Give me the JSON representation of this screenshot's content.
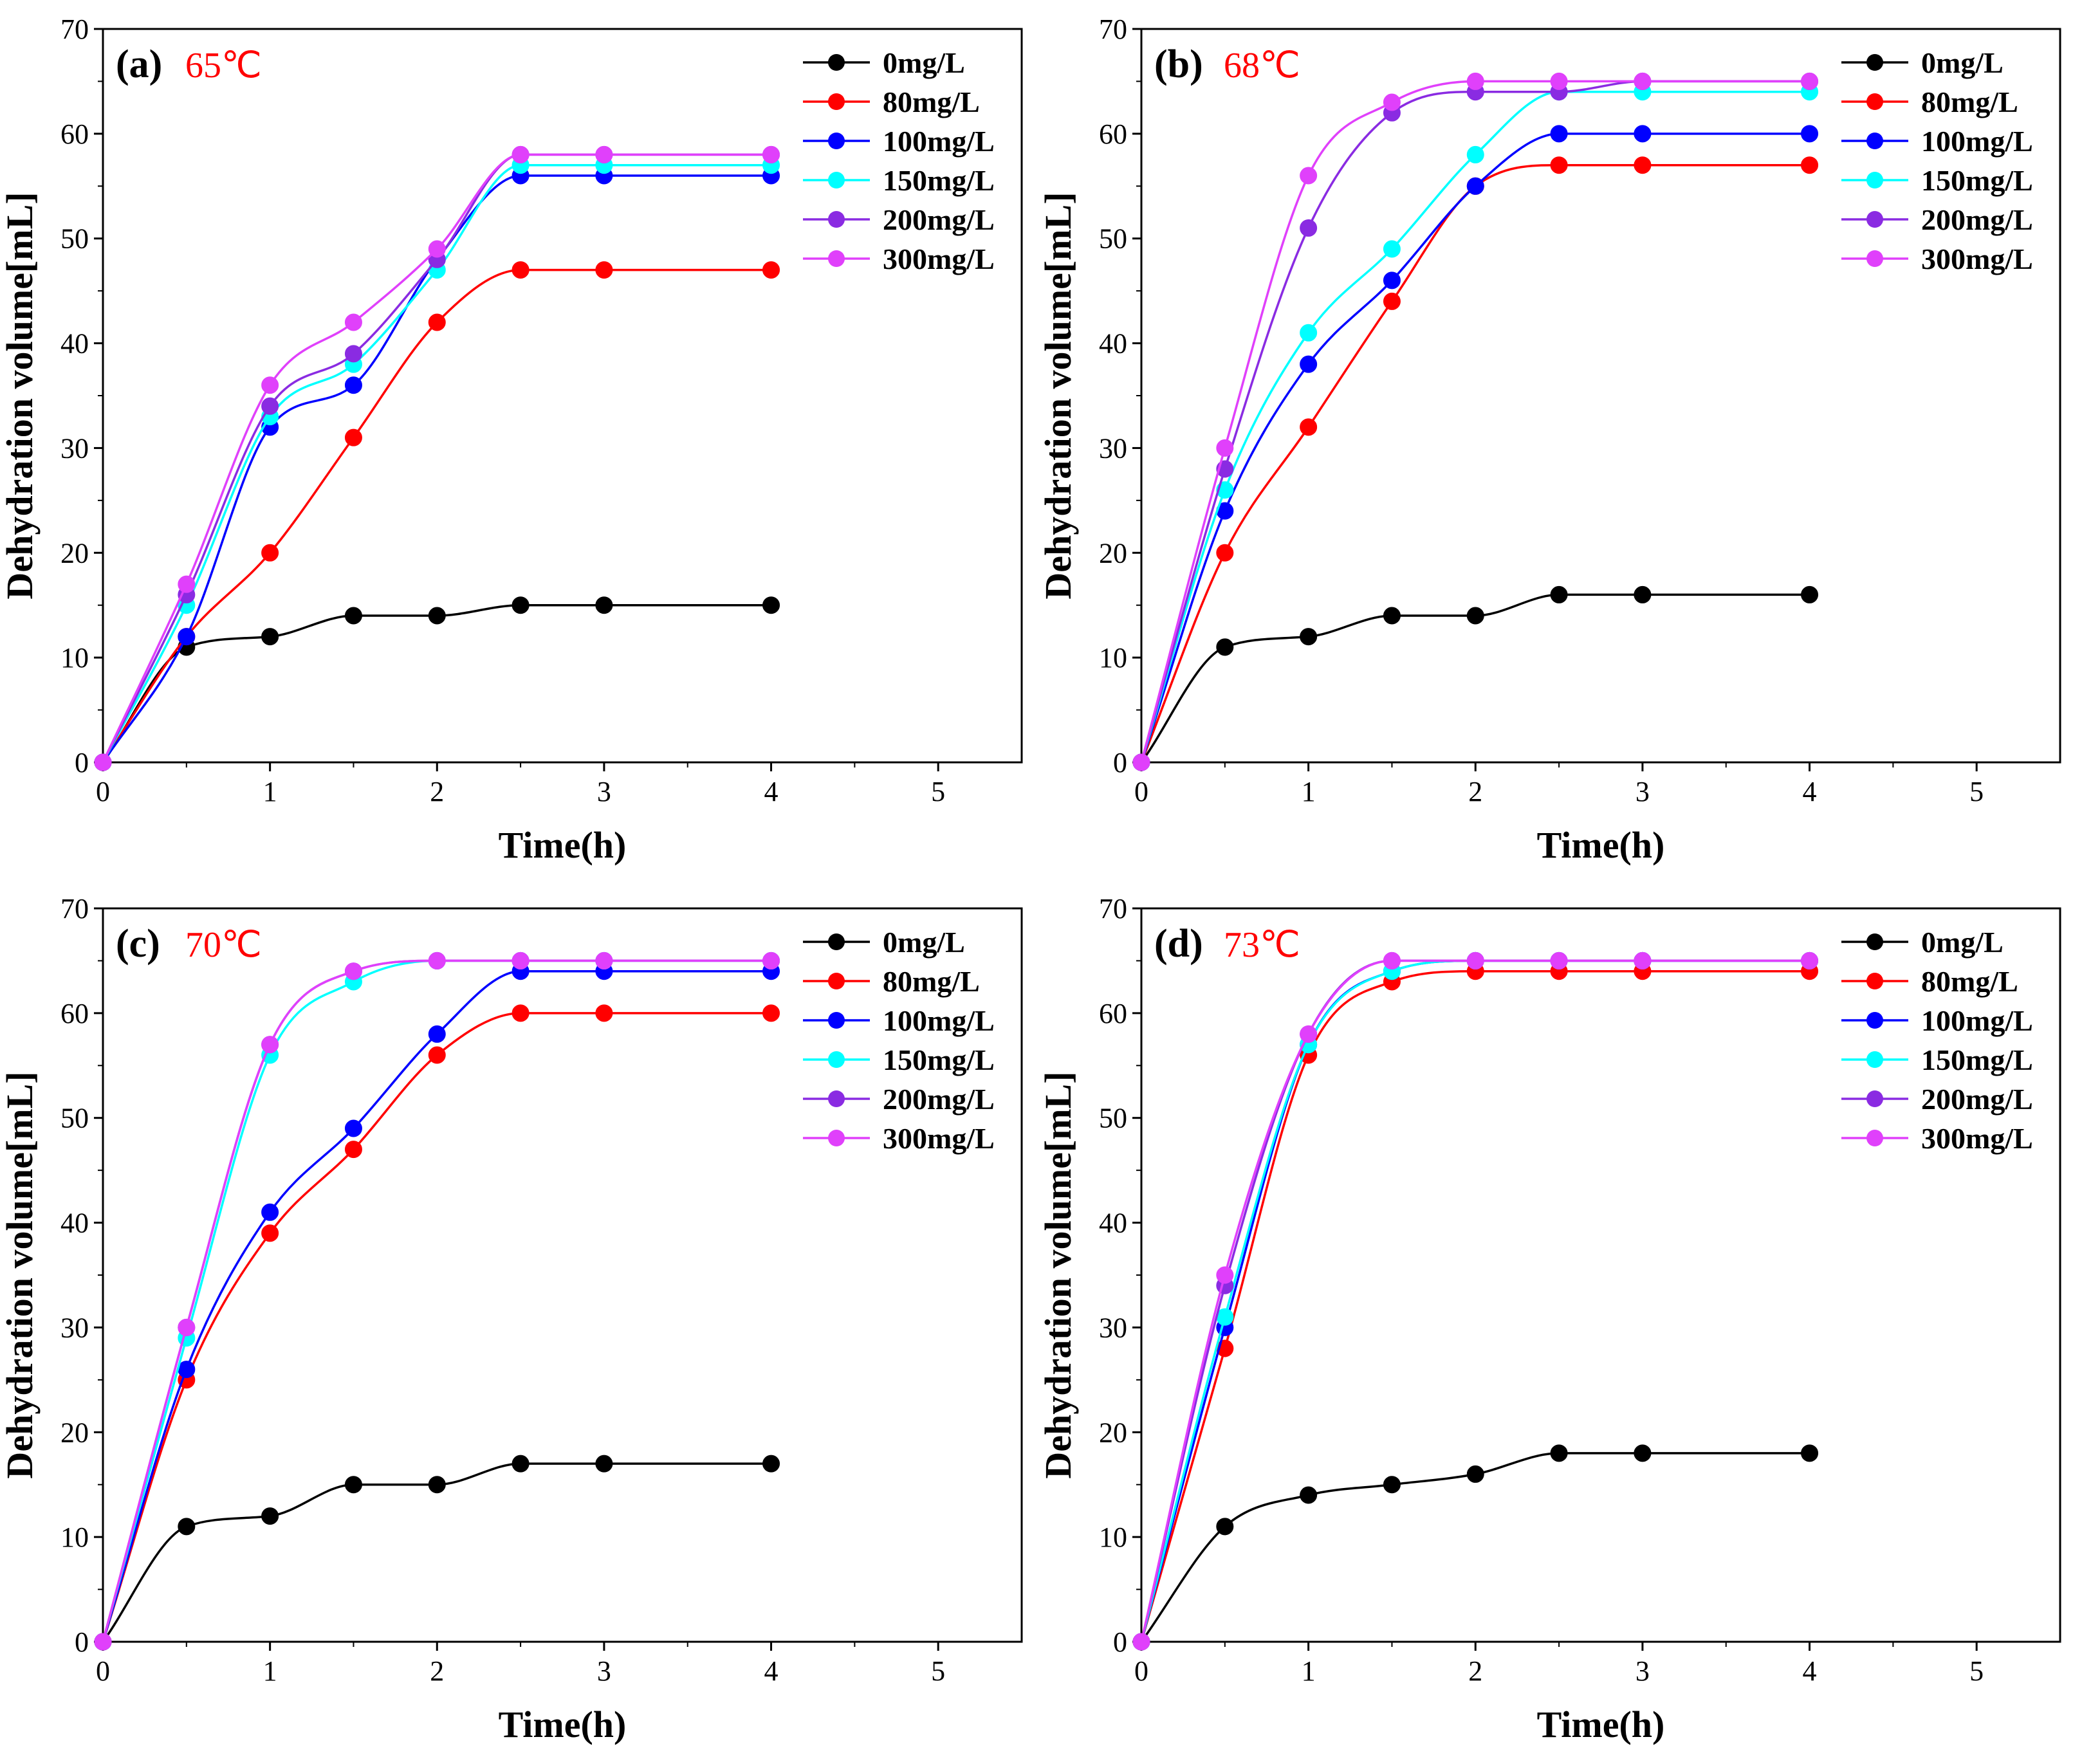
{
  "colors": {
    "0mg/L": "#000000",
    "80mg/L": "#ff0000",
    "100mg/L": "#0000ff",
    "150mg/L": "#00ffff",
    "200mg/L": "#8a2be2",
    "300mg/L": "#e040fb",
    "temperature_label": "#ff0000"
  },
  "chart_data": [
    {
      "type": "line",
      "panel_label": "(a)",
      "temperature": "65℃",
      "xlabel": "Time(h)",
      "ylabel": "Dehydration volume[mL]",
      "xlim": [
        0,
        5.5
      ],
      "ylim": [
        0,
        70
      ],
      "xticks": [
        0,
        1,
        2,
        3,
        4,
        5
      ],
      "yticks": [
        0,
        10,
        20,
        30,
        40,
        50,
        60,
        70
      ],
      "legend_position": "top-right",
      "x": [
        0,
        0.5,
        1,
        1.5,
        2,
        2.5,
        3,
        4
      ],
      "series": [
        {
          "name": "0mg/L",
          "values": [
            0,
            11,
            12,
            14,
            14,
            15,
            15,
            15
          ]
        },
        {
          "name": "80mg/L",
          "values": [
            0,
            12,
            20,
            31,
            42,
            47,
            47,
            47
          ]
        },
        {
          "name": "100mg/L",
          "values": [
            0,
            12,
            32,
            36,
            48,
            56,
            56,
            56
          ]
        },
        {
          "name": "150mg/L",
          "values": [
            0,
            15,
            33,
            38,
            47,
            57,
            57,
            57
          ]
        },
        {
          "name": "200mg/L",
          "values": [
            0,
            16,
            34,
            39,
            48,
            58,
            58,
            58
          ]
        },
        {
          "name": "300mg/L",
          "values": [
            0,
            17,
            36,
            42,
            49,
            58,
            58,
            58
          ]
        }
      ]
    },
    {
      "type": "line",
      "panel_label": "(b)",
      "temperature": "68℃",
      "xlabel": "Time(h)",
      "ylabel": "Dehydration volume[mL]",
      "xlim": [
        0,
        5.5
      ],
      "ylim": [
        0,
        70
      ],
      "xticks": [
        0,
        1,
        2,
        3,
        4,
        5
      ],
      "yticks": [
        0,
        10,
        20,
        30,
        40,
        50,
        60,
        70
      ],
      "legend_position": "top-right",
      "x": [
        0,
        0.5,
        1,
        1.5,
        2,
        2.5,
        3,
        4
      ],
      "series": [
        {
          "name": "0mg/L",
          "values": [
            0,
            11,
            12,
            14,
            14,
            16,
            16,
            16
          ]
        },
        {
          "name": "80mg/L",
          "values": [
            0,
            20,
            32,
            44,
            55,
            57,
            57,
            57
          ]
        },
        {
          "name": "100mg/L",
          "values": [
            0,
            24,
            38,
            46,
            55,
            60,
            60,
            60
          ]
        },
        {
          "name": "150mg/L",
          "values": [
            0,
            26,
            41,
            49,
            58,
            64,
            64,
            64
          ]
        },
        {
          "name": "200mg/L",
          "values": [
            0,
            28,
            51,
            62,
            64,
            64,
            65,
            65
          ]
        },
        {
          "name": "300mg/L",
          "values": [
            0,
            30,
            56,
            63,
            65,
            65,
            65,
            65
          ]
        }
      ]
    },
    {
      "type": "line",
      "panel_label": "(c)",
      "temperature": "70℃",
      "xlabel": "Time(h)",
      "ylabel": "Dehydration volume[mL]",
      "xlim": [
        0,
        5.5
      ],
      "ylim": [
        0,
        70
      ],
      "xticks": [
        0,
        1,
        2,
        3,
        4,
        5
      ],
      "yticks": [
        0,
        10,
        20,
        30,
        40,
        50,
        60,
        70
      ],
      "legend_position": "top-right",
      "x": [
        0,
        0.5,
        1,
        1.5,
        2,
        2.5,
        3,
        4
      ],
      "series": [
        {
          "name": "0mg/L",
          "values": [
            0,
            11,
            12,
            15,
            15,
            17,
            17,
            17
          ]
        },
        {
          "name": "80mg/L",
          "values": [
            0,
            25,
            39,
            47,
            56,
            60,
            60,
            60
          ]
        },
        {
          "name": "100mg/L",
          "values": [
            0,
            26,
            41,
            49,
            58,
            64,
            64,
            64
          ]
        },
        {
          "name": "150mg/L",
          "values": [
            0,
            29,
            56,
            63,
            65,
            65,
            65,
            65
          ]
        },
        {
          "name": "200mg/L",
          "values": [
            0,
            30,
            57,
            64,
            65,
            65,
            65,
            65
          ]
        },
        {
          "name": "300mg/L",
          "values": [
            0,
            30,
            57,
            64,
            65,
            65,
            65,
            65
          ]
        }
      ]
    },
    {
      "type": "line",
      "panel_label": "(d)",
      "temperature": "73℃",
      "xlabel": "Time(h)",
      "ylabel": "Dehydration volume[mL]",
      "xlim": [
        0,
        5.5
      ],
      "ylim": [
        0,
        70
      ],
      "xticks": [
        0,
        1,
        2,
        3,
        4,
        5
      ],
      "yticks": [
        0,
        10,
        20,
        30,
        40,
        50,
        60,
        70
      ],
      "legend_position": "top-right",
      "x": [
        0,
        0.5,
        1,
        1.5,
        2,
        2.5,
        3,
        4
      ],
      "series": [
        {
          "name": "0mg/L",
          "values": [
            0,
            11,
            14,
            15,
            16,
            18,
            18,
            18
          ]
        },
        {
          "name": "80mg/L",
          "values": [
            0,
            28,
            56,
            63,
            64,
            64,
            64,
            64
          ]
        },
        {
          "name": "100mg/L",
          "values": [
            0,
            30,
            57,
            64,
            65,
            65,
            65,
            65
          ]
        },
        {
          "name": "150mg/L",
          "values": [
            0,
            31,
            57,
            64,
            65,
            65,
            65,
            65
          ]
        },
        {
          "name": "200mg/L",
          "values": [
            0,
            34,
            58,
            65,
            65,
            65,
            65,
            65
          ]
        },
        {
          "name": "300mg/L",
          "values": [
            0,
            35,
            58,
            65,
            65,
            65,
            65,
            65
          ]
        }
      ]
    }
  ]
}
